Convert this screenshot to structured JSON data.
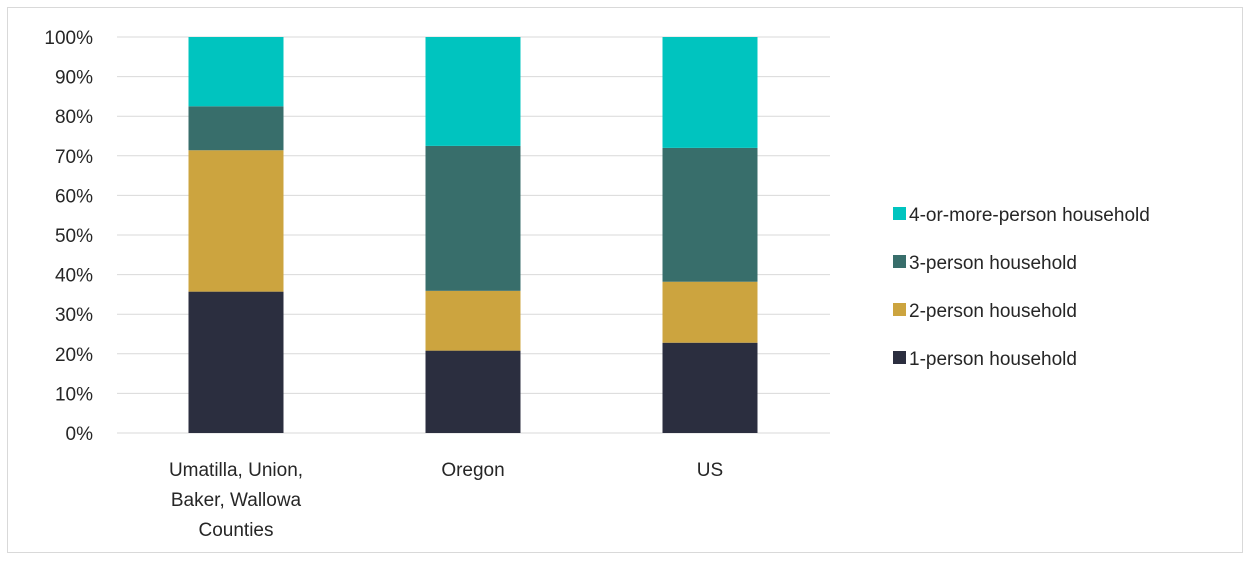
{
  "chart_data": {
    "type": "bar",
    "stacked": true,
    "percent": true,
    "categories": [
      [
        "Umatilla, Union,",
        "Baker, Wallowa",
        "Counties"
      ],
      [
        "Oregon"
      ],
      [
        "US"
      ]
    ],
    "series": [
      {
        "name": "1-person household",
        "color": "#2b2e3f",
        "values": [
          35.7,
          20.8,
          22.8
        ]
      },
      {
        "name": "2-person household",
        "color": "#cca43f",
        "values": [
          35.7,
          15.1,
          15.4
        ]
      },
      {
        "name": "3-person household",
        "color": "#386e6b",
        "values": [
          11.1,
          36.6,
          33.8
        ]
      },
      {
        "name": "4-or-more-person household",
        "color": "#00c4bf",
        "values": [
          17.5,
          27.5,
          28.0
        ]
      }
    ],
    "y_ticks": [
      "0%",
      "10%",
      "20%",
      "30%",
      "40%",
      "50%",
      "60%",
      "70%",
      "80%",
      "90%",
      "100%"
    ],
    "ylim": [
      0,
      100
    ],
    "grid": true,
    "legend_position": "right"
  }
}
